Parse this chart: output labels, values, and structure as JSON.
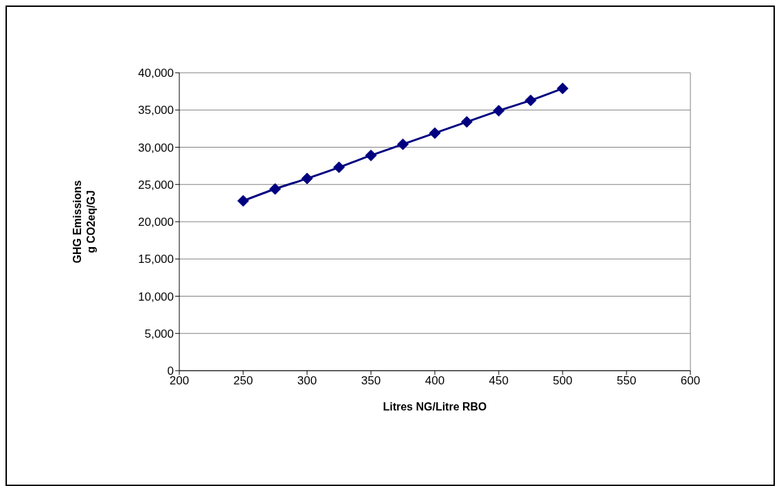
{
  "chart_data": {
    "type": "line",
    "xlabel": "Litres NG/Litre RBO",
    "ylabel": "GHG Emissions\ng CO2eq/GJ",
    "x": [
      250,
      275,
      300,
      325,
      350,
      375,
      400,
      425,
      450,
      475,
      500
    ],
    "series": [
      {
        "color": "#000080",
        "values": [
          22800,
          24400,
          25800,
          27300,
          28900,
          30400,
          31900,
          33400,
          34900,
          36300,
          37900
        ]
      }
    ],
    "xlim": [
      200,
      600
    ],
    "xticks": [
      200,
      250,
      300,
      350,
      400,
      450,
      500,
      550,
      600
    ],
    "ylim": [
      0,
      40000
    ],
    "yticks": [
      0,
      {
        "value": 5000,
        "label": "5,000"
      },
      {
        "value": 10000,
        "label": "10,000"
      },
      {
        "value": 15000,
        "label": "15,000"
      },
      {
        "value": 20000,
        "label": "20,000"
      },
      {
        "value": 25000,
        "label": "25,000"
      },
      {
        "value": 30000,
        "label": "30,000"
      },
      {
        "value": 35000,
        "label": "35,000"
      },
      {
        "value": 40000,
        "label": "40,000"
      }
    ],
    "grid": "y",
    "marker": "diamond",
    "line_style": "solid",
    "legend": false
  }
}
